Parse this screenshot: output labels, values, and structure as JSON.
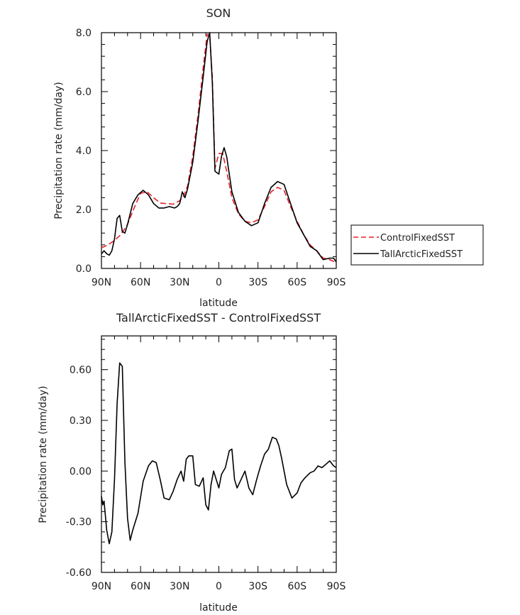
{
  "chart_data": [
    {
      "type": "line",
      "title": "SON",
      "xlabel": "latitude",
      "ylabel": "Precipitation rate (mm/day)",
      "xlim": [
        90,
        -90
      ],
      "ylim": [
        0,
        8
      ],
      "x_ticks": [
        90,
        60,
        30,
        0,
        -30,
        -60,
        -90
      ],
      "x_tick_labels": [
        "90N",
        "60N",
        "30N",
        "0",
        "30S",
        "60S",
        "90S"
      ],
      "y_ticks": [
        0,
        2,
        4,
        6,
        8
      ],
      "y_tick_labels": [
        "0.0",
        "2.0",
        "4.0",
        "6.0",
        "8.0"
      ],
      "legend": "right",
      "series": [
        {
          "name": "ControlFixedSST",
          "color": "#e8202a",
          "dash": "dashed",
          "x": [
            90,
            85,
            80,
            75,
            70,
            65,
            60,
            55,
            50,
            45,
            40,
            35,
            30,
            27,
            24,
            20,
            16,
            12,
            9,
            7,
            5,
            3,
            0,
            -3,
            -6,
            -10,
            -15,
            -20,
            -25,
            -30,
            -35,
            -40,
            -45,
            -50,
            -55,
            -60,
            -65,
            -70,
            -75,
            -80,
            -85,
            -90
          ],
          "values": [
            0.7,
            0.8,
            0.95,
            1.15,
            1.5,
            2.05,
            2.55,
            2.6,
            2.4,
            2.22,
            2.2,
            2.18,
            2.3,
            2.45,
            2.8,
            3.8,
            5.2,
            6.8,
            7.95,
            7.9,
            6.5,
            3.4,
            3.9,
            3.9,
            3.3,
            2.4,
            1.85,
            1.6,
            1.55,
            1.65,
            2.1,
            2.6,
            2.75,
            2.65,
            2.1,
            1.6,
            1.15,
            0.8,
            0.6,
            0.35,
            0.3,
            0.2
          ]
        },
        {
          "name": "TallArcticFixedSST",
          "color": "#000000",
          "dash": "solid",
          "x": [
            90,
            88,
            86,
            84,
            82,
            80,
            78,
            76,
            74,
            72,
            70,
            68,
            66,
            62,
            58,
            54,
            50,
            46,
            42,
            38,
            34,
            32,
            30,
            28,
            26,
            24,
            20,
            16,
            12,
            9,
            7,
            5,
            3,
            0,
            -2,
            -4,
            -6,
            -10,
            -15,
            -20,
            -25,
            -30,
            -35,
            -40,
            -45,
            -50,
            -55,
            -60,
            -65,
            -70,
            -75,
            -80,
            -85,
            -88,
            -90
          ],
          "values": [
            0.5,
            0.6,
            0.5,
            0.45,
            0.6,
            1.0,
            1.7,
            1.8,
            1.25,
            1.2,
            1.5,
            1.85,
            2.2,
            2.5,
            2.65,
            2.5,
            2.2,
            2.05,
            2.05,
            2.1,
            2.05,
            2.1,
            2.2,
            2.6,
            2.4,
            2.7,
            3.6,
            5.0,
            6.5,
            7.7,
            8.0,
            6.3,
            3.3,
            3.2,
            3.8,
            4.1,
            3.8,
            2.6,
            1.9,
            1.6,
            1.45,
            1.55,
            2.2,
            2.75,
            2.95,
            2.85,
            2.2,
            1.55,
            1.15,
            0.75,
            0.6,
            0.3,
            0.35,
            0.35,
            0.22
          ]
        }
      ]
    },
    {
      "type": "line",
      "title": "TallArcticFixedSST - ControlFixedSST",
      "xlabel": "latitude",
      "ylabel": "Precipitation rate (mm/day)",
      "xlim": [
        90,
        -90
      ],
      "ylim": [
        -0.6,
        0.8
      ],
      "x_ticks": [
        90,
        60,
        30,
        0,
        -30,
        -60,
        -90
      ],
      "x_tick_labels": [
        "90N",
        "60N",
        "30N",
        "0",
        "30S",
        "60S",
        "90S"
      ],
      "y_ticks": [
        -0.6,
        -0.3,
        0,
        0.3,
        0.6
      ],
      "y_tick_labels": [
        "-0.60",
        "-0.30",
        "0.00",
        "0.30",
        "0.60"
      ],
      "series": [
        {
          "color": "#000000",
          "dash": "solid",
          "x": [
            90,
            89,
            88,
            86,
            84,
            82,
            80,
            78,
            76,
            74,
            72,
            70,
            68,
            66,
            62,
            58,
            54,
            51,
            48,
            45,
            42,
            38,
            35,
            32,
            29,
            27,
            25,
            23,
            20,
            18,
            15,
            12,
            10,
            8,
            6,
            4,
            2,
            0,
            -2,
            -5,
            -8,
            -10,
            -12,
            -14,
            -17,
            -20,
            -23,
            -26,
            -29,
            -32,
            -35,
            -38,
            -41,
            -44,
            -46,
            -48,
            -52,
            -56,
            -60,
            -63,
            -66,
            -70,
            -73,
            -76,
            -79,
            -82,
            -85,
            -88,
            -90
          ],
          "values": [
            -0.15,
            -0.2,
            -0.18,
            -0.35,
            -0.43,
            -0.36,
            -0.05,
            0.4,
            0.64,
            0.62,
            0.05,
            -0.28,
            -0.41,
            -0.35,
            -0.25,
            -0.06,
            0.03,
            0.06,
            0.05,
            -0.05,
            -0.16,
            -0.17,
            -0.12,
            -0.05,
            0.0,
            -0.06,
            0.07,
            0.09,
            0.09,
            -0.08,
            -0.09,
            -0.04,
            -0.2,
            -0.23,
            -0.08,
            -0.0,
            -0.05,
            -0.1,
            -0.02,
            0.02,
            0.12,
            0.13,
            -0.05,
            -0.1,
            -0.05,
            0.0,
            -0.1,
            -0.14,
            -0.05,
            0.03,
            0.1,
            0.13,
            0.2,
            0.19,
            0.15,
            0.08,
            -0.08,
            -0.16,
            -0.13,
            -0.07,
            -0.04,
            -0.01,
            0.0,
            0.03,
            0.02,
            0.04,
            0.06,
            0.03,
            0.02
          ]
        }
      ]
    }
  ]
}
